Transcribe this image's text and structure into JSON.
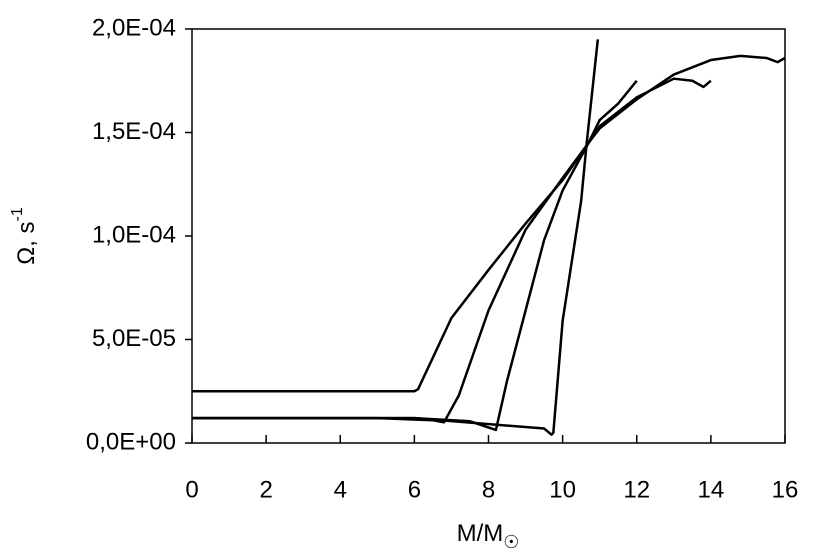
{
  "chart_data": {
    "type": "line",
    "xlabel": {
      "text": "M/M",
      "subscript": "☉"
    },
    "ylabel": {
      "text": "Ω, s",
      "superscript": "-1"
    },
    "xlim": [
      0,
      16
    ],
    "xticks": [
      0,
      2,
      4,
      6,
      8,
      10,
      12,
      14,
      16
    ],
    "ylim": [
      0,
      0.0002
    ],
    "yticks": [
      {
        "value": 0,
        "label": "0,0E+00"
      },
      {
        "value": 5e-05,
        "label": "5,0E-05"
      },
      {
        "value": 0.0001,
        "label": "1,0E-04"
      },
      {
        "value": 0.00015,
        "label": "1,5E-04"
      },
      {
        "value": 0.0002,
        "label": "2,0E-04"
      }
    ],
    "grid": false,
    "series": [
      {
        "color": "#000000",
        "x": [
          0,
          6,
          6.1,
          7,
          8,
          9,
          10,
          10.7,
          11,
          12,
          13,
          14,
          14.8,
          15.5,
          15.8,
          16
        ],
        "values": [
          2.5e-05,
          2.5e-05,
          2.6e-05,
          6.04e-05,
          8.36e-05,
          0.000106,
          0.000127,
          0.000145,
          0.000152,
          0.000166,
          0.000178,
          0.000185,
          0.000187,
          0.000186,
          0.000184,
          0.000186
        ]
      },
      {
        "color": "#000000",
        "x": [
          0,
          5,
          6.5,
          6.8,
          7.2,
          8,
          9,
          10,
          10.7,
          11,
          12,
          13,
          13.5,
          13.8,
          14
        ],
        "values": [
          1.2e-05,
          1.2e-05,
          1.1e-05,
          1e-05,
          2.3e-05,
          6.4e-05,
          0.000103,
          0.000128,
          0.000145,
          0.000153,
          0.000167,
          0.000176,
          0.000175,
          0.000172,
          0.000175
        ]
      },
      {
        "color": "#000000",
        "x": [
          0,
          6,
          7.5,
          8.2,
          8.5,
          9,
          9.5,
          10,
          10.7,
          11,
          11.5,
          12
        ],
        "values": [
          1.2e-05,
          1.2e-05,
          1.05e-05,
          6.3e-06,
          3e-05,
          6.4e-05,
          9.8e-05,
          0.000122,
          0.000145,
          0.000156,
          0.000164,
          0.000175
        ]
      },
      {
        "color": "#000000",
        "x": [
          0,
          6,
          9.5,
          9.7,
          9.75,
          10,
          10.5,
          10.65,
          10.95
        ],
        "values": [
          1.2e-05,
          1.2e-05,
          7e-06,
          4e-06,
          5e-06,
          5.9e-05,
          0.000117,
          0.000145,
          0.000195
        ]
      }
    ]
  }
}
